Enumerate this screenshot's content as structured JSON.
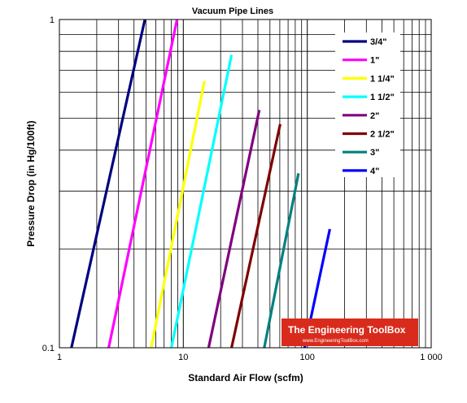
{
  "chart_data": {
    "type": "line",
    "title": "Vacuum Pipe Lines",
    "xlabel": "Standard Air Flow (scfm)",
    "ylabel": "Pressure Drop (in Hg/100ft)",
    "xscale": "log",
    "yscale": "log",
    "xlim": [
      1,
      1000
    ],
    "ylim": [
      0.1,
      1
    ],
    "x_tick_labels": [
      {
        "value": 1,
        "label": "1"
      },
      {
        "value": 10,
        "label": "10"
      },
      {
        "value": 100,
        "label": "100"
      },
      {
        "value": 1000,
        "label": "1 000"
      }
    ],
    "y_tick_labels": [
      {
        "value": 0.1,
        "label": "0.1"
      },
      {
        "value": 1,
        "label": "1"
      }
    ],
    "grid": true,
    "legend_position": "top-right",
    "series": [
      {
        "name": "3/4\"",
        "color": "#000080",
        "points": [
          [
            1.25,
            0.1
          ],
          [
            4.9,
            1.0
          ]
        ]
      },
      {
        "name": "1\"",
        "color": "#ff00ff",
        "points": [
          [
            2.5,
            0.1
          ],
          [
            8.9,
            1.0
          ]
        ]
      },
      {
        "name": "1 1/4\"",
        "color": "#ffff00",
        "points": [
          [
            5.5,
            0.1
          ],
          [
            14.8,
            0.65
          ]
        ]
      },
      {
        "name": "1 1/2\"",
        "color": "#00ffff",
        "points": [
          [
            8.0,
            0.1
          ],
          [
            24.5,
            0.78
          ]
        ]
      },
      {
        "name": "2\"",
        "color": "#800080",
        "points": [
          [
            16.0,
            0.1
          ],
          [
            41.0,
            0.53
          ]
        ]
      },
      {
        "name": "2 1/2\"",
        "color": "#800000",
        "points": [
          [
            24.5,
            0.1
          ],
          [
            60.5,
            0.48
          ]
        ]
      },
      {
        "name": "3\"",
        "color": "#008080",
        "points": [
          [
            45.0,
            0.1
          ],
          [
            85.0,
            0.34
          ]
        ]
      },
      {
        "name": "4\"",
        "color": "#0000ff",
        "points": [
          [
            95.0,
            0.1
          ],
          [
            152.0,
            0.23
          ]
        ]
      }
    ]
  },
  "watermark": {
    "name": "The Engineering ToolBox",
    "url": "www.EngineeringToolBox.com"
  }
}
